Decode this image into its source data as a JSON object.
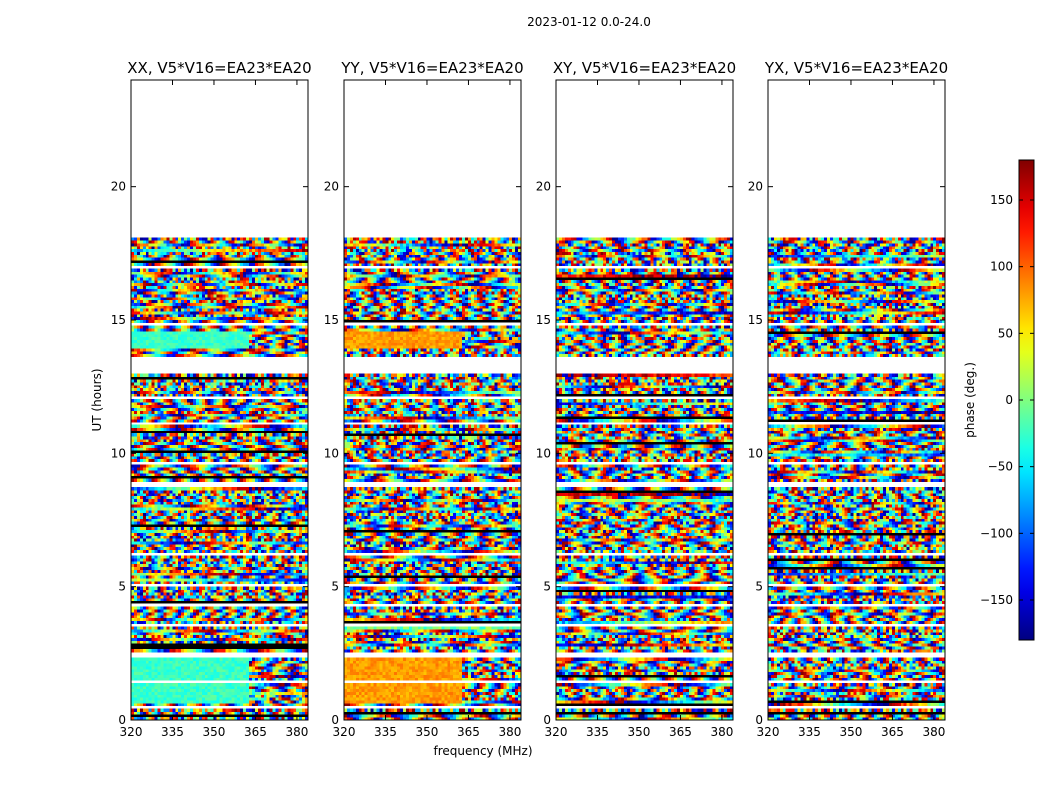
{
  "chart_data": {
    "type": "heatmap",
    "suptitle": "2023-01-12 0.0-24.0",
    "xlabel": "frequency (MHz)",
    "ylabel": "UT (hours)",
    "xlim": [
      320,
      384
    ],
    "ylim": [
      0,
      24
    ],
    "xticks": [
      "320",
      "335",
      "350",
      "365",
      "380"
    ],
    "xtick_values": [
      320,
      335,
      350,
      365,
      380
    ],
    "yticks": [
      "0",
      "5",
      "10",
      "15",
      "20"
    ],
    "ytick_values": [
      0,
      5,
      10,
      15,
      20
    ],
    "colorbar": {
      "label": "phase (deg.)",
      "range": [
        -180,
        180
      ],
      "ticks": [
        "−150",
        "−100",
        "−50",
        "0",
        "50",
        "100",
        "150"
      ],
      "tick_values": [
        -150,
        -100,
        -50,
        0,
        50,
        100,
        150
      ],
      "colormap": "jet"
    },
    "data_time_range_hours": [
      0,
      18.1
    ],
    "panels": [
      {
        "title": "XX, V5*V16=EA23*EA20",
        "bias": [
          [
            0.6,
            2.3,
            -25
          ],
          [
            14.0,
            14.6,
            -25
          ]
        ]
      },
      {
        "title": "YY, V5*V16=EA23*EA20",
        "bias": [
          [
            0.6,
            2.3,
            80
          ],
          [
            14.0,
            14.6,
            80
          ]
        ]
      },
      {
        "title": "XY, V5*V16=EA23*EA20",
        "bias": []
      },
      {
        "title": "YX, V5*V16=EA23*EA20",
        "bias": []
      }
    ],
    "gaps_hours": [
      [
        0.45,
        0.55
      ],
      [
        1.35,
        1.45
      ],
      [
        2.35,
        2.55
      ],
      [
        3.55,
        3.65
      ],
      [
        4.25,
        4.35
      ],
      [
        5.05,
        5.15
      ],
      [
        6.15,
        6.3
      ],
      [
        8.75,
        8.9
      ],
      [
        9.55,
        9.65
      ],
      [
        11.05,
        11.2
      ],
      [
        12.0,
        12.15
      ],
      [
        13.0,
        13.6
      ],
      [
        14.8,
        14.9
      ],
      [
        16.95,
        17.05
      ]
    ]
  }
}
